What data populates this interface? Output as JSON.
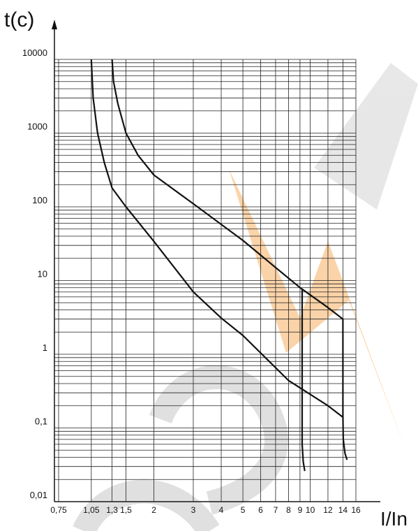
{
  "chart_data": {
    "type": "line",
    "y_label": "t(c)",
    "x_label": "I/In",
    "log_x": true,
    "log_y": true,
    "grid": true,
    "minor_grid": true,
    "xlim": [
      0.75,
      16
    ],
    "ylim": [
      0.01,
      10000
    ],
    "xticks": [
      {
        "value": 0.75,
        "label": "0,75"
      },
      {
        "value": 1.05,
        "label": "1,05"
      },
      {
        "value": 1.3,
        "label": "1,3"
      },
      {
        "value": 1.5,
        "label": "1,5"
      },
      2,
      3,
      4,
      5,
      6,
      7,
      8,
      9,
      10,
      12,
      14,
      16
    ],
    "yticks": [
      {
        "value": 0.01,
        "label": "0,01"
      },
      {
        "value": 0.1,
        "label": "0,1"
      },
      1,
      10,
      100,
      1000,
      10000
    ],
    "series": [
      {
        "color": "#111111",
        "x": [
          1.3,
          1.32,
          1.38,
          1.5,
          1.7,
          2,
          3,
          5,
          7,
          9,
          12,
          14,
          14,
          14.05,
          14.3,
          14.6
        ],
        "values": [
          10000,
          5000,
          2500,
          1000,
          500,
          270,
          110,
          35,
          15,
          8,
          4.3,
          3,
          0.15,
          0.07,
          0.045,
          0.037
        ]
      },
      {
        "color": "#111111",
        "x": [
          1.05,
          1.07,
          1.12,
          1.2,
          1.3,
          1.5,
          2,
          3,
          4,
          5,
          8,
          9,
          12,
          14
        ],
        "values": [
          10000,
          3000,
          1000,
          400,
          180,
          100,
          34,
          7,
          3.1,
          1.8,
          0.44,
          0.35,
          0.2,
          0.14
        ]
      },
      {
        "color": "#111111",
        "x": [
          9.2,
          9.2,
          9.3,
          9.45
        ],
        "values": [
          7.7,
          0.06,
          0.035,
          0.026
        ]
      }
    ]
  }
}
